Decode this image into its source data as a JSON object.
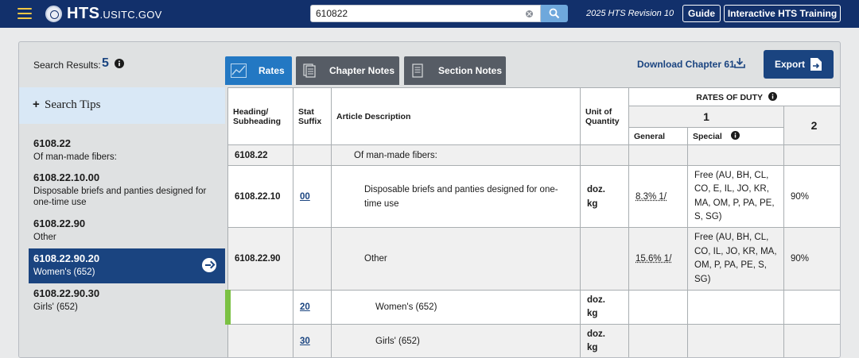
{
  "header": {
    "brand": "HTS",
    "brand_suffix": ".USITC.GOV",
    "search_value": "610822",
    "revision": "2025 HTS Revision 10",
    "guide_label": "Guide",
    "training_label": "Interactive HTS Training"
  },
  "toolbar": {
    "results_label": "Search Results:",
    "results_count": "5",
    "tabs": [
      {
        "label": "Rates"
      },
      {
        "label": "Chapter Notes"
      },
      {
        "label": "Section Notes"
      }
    ],
    "download_label": "Download Chapter 61",
    "export_label": "Export"
  },
  "sidebar": {
    "tips_label": "Search Tips",
    "results": [
      {
        "code": "6108.22",
        "desc": "Of man-made fibers:"
      },
      {
        "code": "6108.22.10.00",
        "desc": "Disposable briefs and panties designed for one-time use"
      },
      {
        "code": "6108.22.90",
        "desc": "Other"
      },
      {
        "code": "6108.22.90.20",
        "desc": "Women's (652)"
      },
      {
        "code": "6108.22.90.30",
        "desc": "Girls' (652)"
      }
    ]
  },
  "table": {
    "headers": {
      "heading": "Heading/ Subheading",
      "suffix": "Stat Suffix",
      "desc": "Article Description",
      "unit": "Unit of Quantity",
      "rates": "RATES OF DUTY",
      "col1": "1",
      "col2": "2",
      "general": "General",
      "special": "Special"
    },
    "rows": [
      {
        "heading": "6108.22",
        "suffix": "",
        "desc": "Of man-made fibers:",
        "unit1": "",
        "unit2": "",
        "general": "",
        "special": "",
        "col2": ""
      },
      {
        "heading": "6108.22.10",
        "suffix": "00",
        "desc": "Disposable briefs and panties designed for one-time use",
        "unit1": "doz.",
        "unit2": "kg",
        "general": "8.3% 1/",
        "special": "Free (AU, BH, CL, CO, E, IL, JO, KR, MA, OM, P, PA, PE, S, SG)",
        "col2": "90%"
      },
      {
        "heading": "6108.22.90",
        "suffix": "",
        "desc": "Other",
        "unit1": "",
        "unit2": "",
        "general": "15.6% 1/",
        "special": "Free (AU, BH, CL, CO, IL, JO, KR, MA, OM, P, PA, PE, S, SG)",
        "col2": "90%"
      },
      {
        "heading": "",
        "suffix": "20",
        "desc": "Women's (652)",
        "unit1": "doz.",
        "unit2": "kg",
        "general": "",
        "special": "",
        "col2": ""
      },
      {
        "heading": "",
        "suffix": "30",
        "desc": "Girls' (652)",
        "unit1": "doz.",
        "unit2": "kg",
        "general": "",
        "special": "",
        "col2": ""
      }
    ]
  },
  "colors": {
    "header_bg": "#12306b",
    "primary": "#1a4480",
    "tab_active": "#2378c3",
    "tab_inactive": "#565c65",
    "highlight_bar": "#7bc143"
  }
}
